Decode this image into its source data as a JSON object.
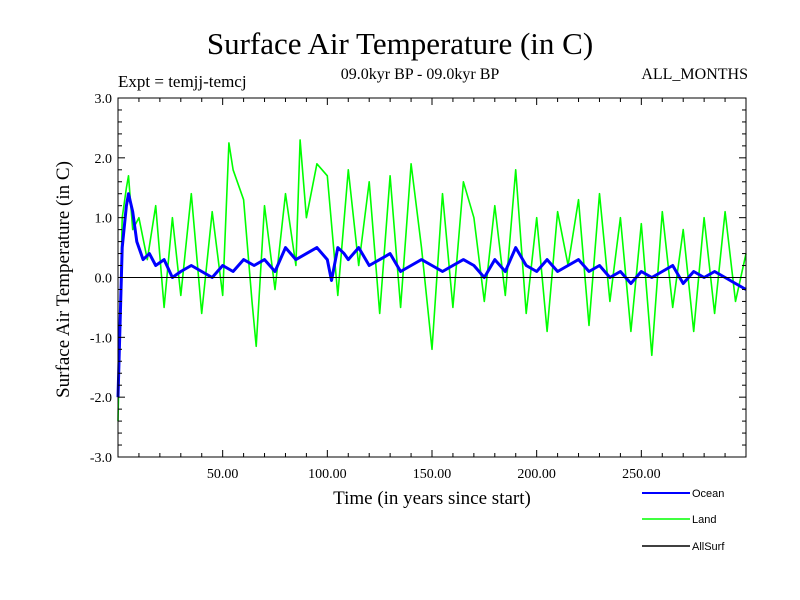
{
  "header": {
    "experiment": "Expt = temjj-temcj",
    "period": "09.0kyr BP - 09.0kyr BP",
    "months": "ALL_MONTHS"
  },
  "colors": {
    "ocean": "#0000ff",
    "land": "#00ff00",
    "allsurf": "#000000",
    "axis": "#000000"
  },
  "chart_data": {
    "type": "line",
    "title": "Surface Air Temperature (in C)",
    "xlabel": "Time (in years since start)",
    "ylabel": "Surface Air Temperature (in C)",
    "xlim": [
      0,
      300
    ],
    "ylim": [
      -3.0,
      3.0
    ],
    "x_ticks": [
      50,
      100,
      150,
      200,
      250
    ],
    "x_tick_labels": [
      "50.00",
      "100.00",
      "150.00",
      "200.00",
      "250.00"
    ],
    "y_ticks": [
      -3,
      -2,
      -1,
      0,
      1,
      2,
      3
    ],
    "y_tick_labels": [
      "-3.0",
      "-2.0",
      "-1.0",
      "0.0",
      "1.0",
      "2.0",
      "3.0"
    ],
    "zero_line": true,
    "legend_position": "bottom-right",
    "series": [
      {
        "name": "Ocean",
        "color_key": "ocean",
        "x": [
          0,
          2,
          4,
          5,
          7,
          9,
          12,
          15,
          18,
          22,
          26,
          30,
          35,
          40,
          45,
          50,
          55,
          60,
          65,
          70,
          75,
          80,
          85,
          90,
          95,
          100,
          102,
          105,
          108,
          110,
          115,
          120,
          125,
          130,
          135,
          140,
          145,
          150,
          155,
          160,
          165,
          170,
          175,
          180,
          185,
          190,
          195,
          200,
          205,
          210,
          215,
          220,
          225,
          230,
          235,
          240,
          245,
          250,
          255,
          260,
          265,
          270,
          275,
          280,
          285,
          290,
          295,
          300
        ],
        "values": [
          -2.0,
          0.5,
          1.2,
          1.4,
          1.1,
          0.6,
          0.3,
          0.4,
          0.2,
          0.3,
          0.0,
          0.1,
          0.2,
          0.1,
          0.0,
          0.2,
          0.1,
          0.3,
          0.2,
          0.3,
          0.1,
          0.5,
          0.3,
          0.4,
          0.5,
          0.3,
          -0.05,
          0.5,
          0.4,
          0.3,
          0.5,
          0.2,
          0.3,
          0.4,
          0.1,
          0.2,
          0.3,
          0.2,
          0.1,
          0.2,
          0.3,
          0.2,
          0.0,
          0.3,
          0.1,
          0.5,
          0.2,
          0.1,
          0.3,
          0.1,
          0.2,
          0.3,
          0.1,
          0.2,
          0.0,
          0.1,
          -0.1,
          0.1,
          0.0,
          0.1,
          0.2,
          -0.1,
          0.1,
          0.0,
          0.1,
          0.0,
          -0.1,
          -0.2
        ]
      },
      {
        "name": "Land",
        "color_key": "land",
        "x": [
          0,
          2,
          4,
          5,
          7,
          10,
          14,
          18,
          22,
          26,
          30,
          35,
          40,
          45,
          50,
          53,
          55,
          60,
          64,
          66,
          70,
          75,
          80,
          85,
          87,
          90,
          95,
          100,
          105,
          110,
          115,
          120,
          125,
          130,
          135,
          140,
          145,
          150,
          155,
          160,
          165,
          170,
          175,
          180,
          185,
          190,
          195,
          200,
          205,
          210,
          215,
          220,
          225,
          230,
          235,
          240,
          245,
          250,
          255,
          260,
          265,
          270,
          275,
          280,
          285,
          290,
          295,
          300
        ],
        "values": [
          -2.4,
          1.0,
          1.5,
          1.7,
          0.8,
          1.0,
          0.3,
          1.2,
          -0.5,
          1.0,
          -0.3,
          1.4,
          -0.6,
          1.1,
          -0.3,
          2.25,
          1.8,
          1.3,
          -0.4,
          -1.15,
          1.2,
          -0.2,
          1.4,
          0.2,
          2.3,
          1.0,
          1.9,
          1.7,
          -0.3,
          1.8,
          0.2,
          1.6,
          -0.6,
          1.7,
          -0.5,
          1.9,
          0.5,
          -1.2,
          1.4,
          -0.5,
          1.6,
          1.0,
          -0.4,
          1.2,
          -0.3,
          1.8,
          -0.6,
          1.0,
          -0.9,
          1.1,
          0.2,
          1.3,
          -0.8,
          1.4,
          -0.4,
          1.0,
          -0.9,
          0.9,
          -1.3,
          1.1,
          -0.5,
          0.8,
          -0.9,
          1.0,
          -0.6,
          1.1,
          -0.4,
          0.4
        ]
      },
      {
        "name": "AllSurf",
        "color_key": "allsurf",
        "x": [],
        "values": []
      }
    ]
  }
}
